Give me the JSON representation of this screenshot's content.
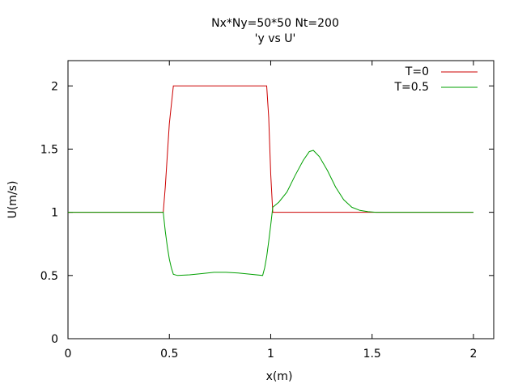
{
  "chart_data": {
    "type": "line",
    "title": "Nx*Ny=50*50 Nt=200",
    "subtitle": "'y vs U'",
    "xlabel": "x(m)",
    "ylabel": "U(m/s)",
    "xlim": [
      0,
      2.1
    ],
    "ylim": [
      0,
      2.2
    ],
    "xticks": [
      0,
      0.5,
      1,
      1.5,
      2
    ],
    "xtick_labels": [
      "0",
      "0.5",
      "1",
      "1.5",
      "2"
    ],
    "yticks": [
      0,
      0.5,
      1,
      1.5,
      2
    ],
    "ytick_labels": [
      "0",
      "0.5",
      "1",
      "1.5",
      "2"
    ],
    "grid": false,
    "legend_position": "top-right",
    "series": [
      {
        "name": "T=0",
        "color": "#cc0000",
        "points": [
          [
            0,
            1
          ],
          [
            0.47,
            1
          ],
          [
            0.48,
            1.2
          ],
          [
            0.49,
            1.45
          ],
          [
            0.5,
            1.7
          ],
          [
            0.51,
            1.85
          ],
          [
            0.52,
            2
          ],
          [
            0.98,
            2
          ],
          [
            0.99,
            1.75
          ],
          [
            1.0,
            1.3
          ],
          [
            1.01,
            1
          ],
          [
            2,
            1
          ]
        ]
      },
      {
        "name": "T=0.5",
        "color": "#00a000",
        "points": [
          [
            0,
            1
          ],
          [
            0.47,
            1
          ],
          [
            0.48,
            0.85
          ],
          [
            0.49,
            0.73
          ],
          [
            0.5,
            0.63
          ],
          [
            0.51,
            0.56
          ],
          [
            0.52,
            0.51
          ],
          [
            0.54,
            0.5
          ],
          [
            0.6,
            0.505
          ],
          [
            0.66,
            0.515
          ],
          [
            0.72,
            0.525
          ],
          [
            0.78,
            0.525
          ],
          [
            0.84,
            0.52
          ],
          [
            0.9,
            0.51
          ],
          [
            0.96,
            0.5
          ],
          [
            0.97,
            0.56
          ],
          [
            0.98,
            0.65
          ],
          [
            0.99,
            0.77
          ],
          [
            1.0,
            0.9
          ],
          [
            1.01,
            1.04
          ],
          [
            1.04,
            1.08
          ],
          [
            1.08,
            1.16
          ],
          [
            1.12,
            1.29
          ],
          [
            1.16,
            1.41
          ],
          [
            1.19,
            1.48
          ],
          [
            1.21,
            1.49
          ],
          [
            1.24,
            1.44
          ],
          [
            1.28,
            1.33
          ],
          [
            1.32,
            1.2
          ],
          [
            1.36,
            1.1
          ],
          [
            1.4,
            1.04
          ],
          [
            1.44,
            1.015
          ],
          [
            1.48,
            1.005
          ],
          [
            1.52,
            1
          ],
          [
            2,
            1
          ]
        ]
      }
    ]
  }
}
